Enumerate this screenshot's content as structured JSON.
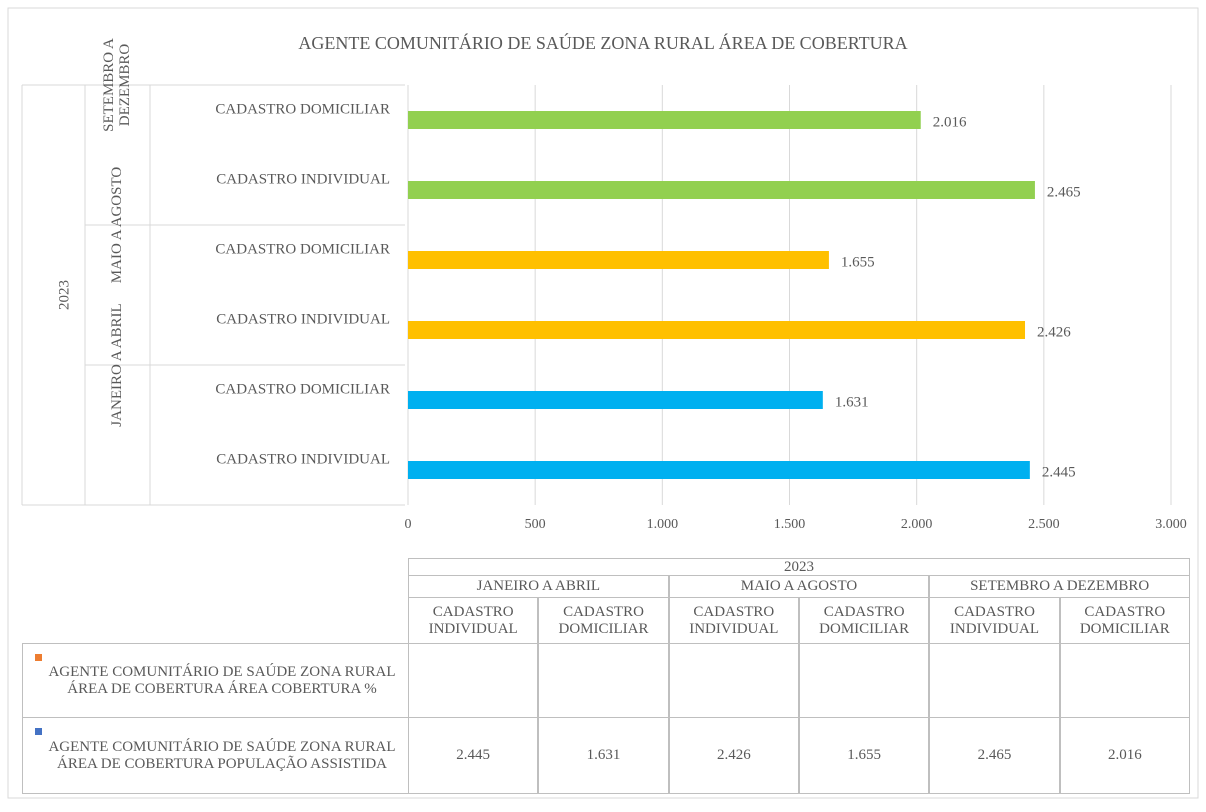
{
  "chart_data": {
    "type": "bar",
    "orientation": "horizontal",
    "title": "AGENTE COMUNITÁRIO DE SAÚDE ZONA RURAL ÁREA DE COBERTURA",
    "year": "2023",
    "groups": [
      "JANEIRO A ABRIL",
      "MAIO A AGOSTO",
      "SETEMBRO A DEZEMBRO"
    ],
    "categories": [
      "CADASTRO INDIVIDUAL",
      "CADASTRO DOMICILIAR",
      "CADASTRO INDIVIDUAL",
      "CADASTRO DOMICILIAR",
      "CADASTRO INDIVIDUAL",
      "CADASTRO DOMICILIAR"
    ],
    "bar_colors": [
      "#00b0f0",
      "#00b0f0",
      "#ffc000",
      "#ffc000",
      "#92d050",
      "#92d050"
    ],
    "series": [
      {
        "name": "AGENTE COMUNITÁRIO DE SAÚDE ZONA RURAL ÁREA DE COBERTURA ÁREA COBERTURA %",
        "color": "#ed7d31",
        "values": [
          null,
          null,
          null,
          null,
          null,
          null
        ]
      },
      {
        "name": "AGENTE COMUNITÁRIO DE SAÚDE ZONA RURAL ÁREA DE COBERTURA POPULAÇÃO ASSISTIDA",
        "color": "#4472c4",
        "values": [
          2445,
          1631,
          2426,
          1655,
          2465,
          2016
        ],
        "value_labels": [
          "2.445",
          "1.631",
          "2.426",
          "1.655",
          "2.465",
          "2.016"
        ]
      }
    ],
    "xlim": [
      0,
      3000
    ],
    "xticks": [
      0,
      500,
      {
        "value": 1000,
        "label": "1.000"
      },
      {
        "value": 1500,
        "label": "1.500"
      },
      {
        "value": 2000,
        "label": "2.000"
      },
      {
        "value": 2500,
        "label": "2.500"
      },
      {
        "value": 3000,
        "label": "3.000"
      }
    ],
    "grid": true,
    "data_table": true
  }
}
